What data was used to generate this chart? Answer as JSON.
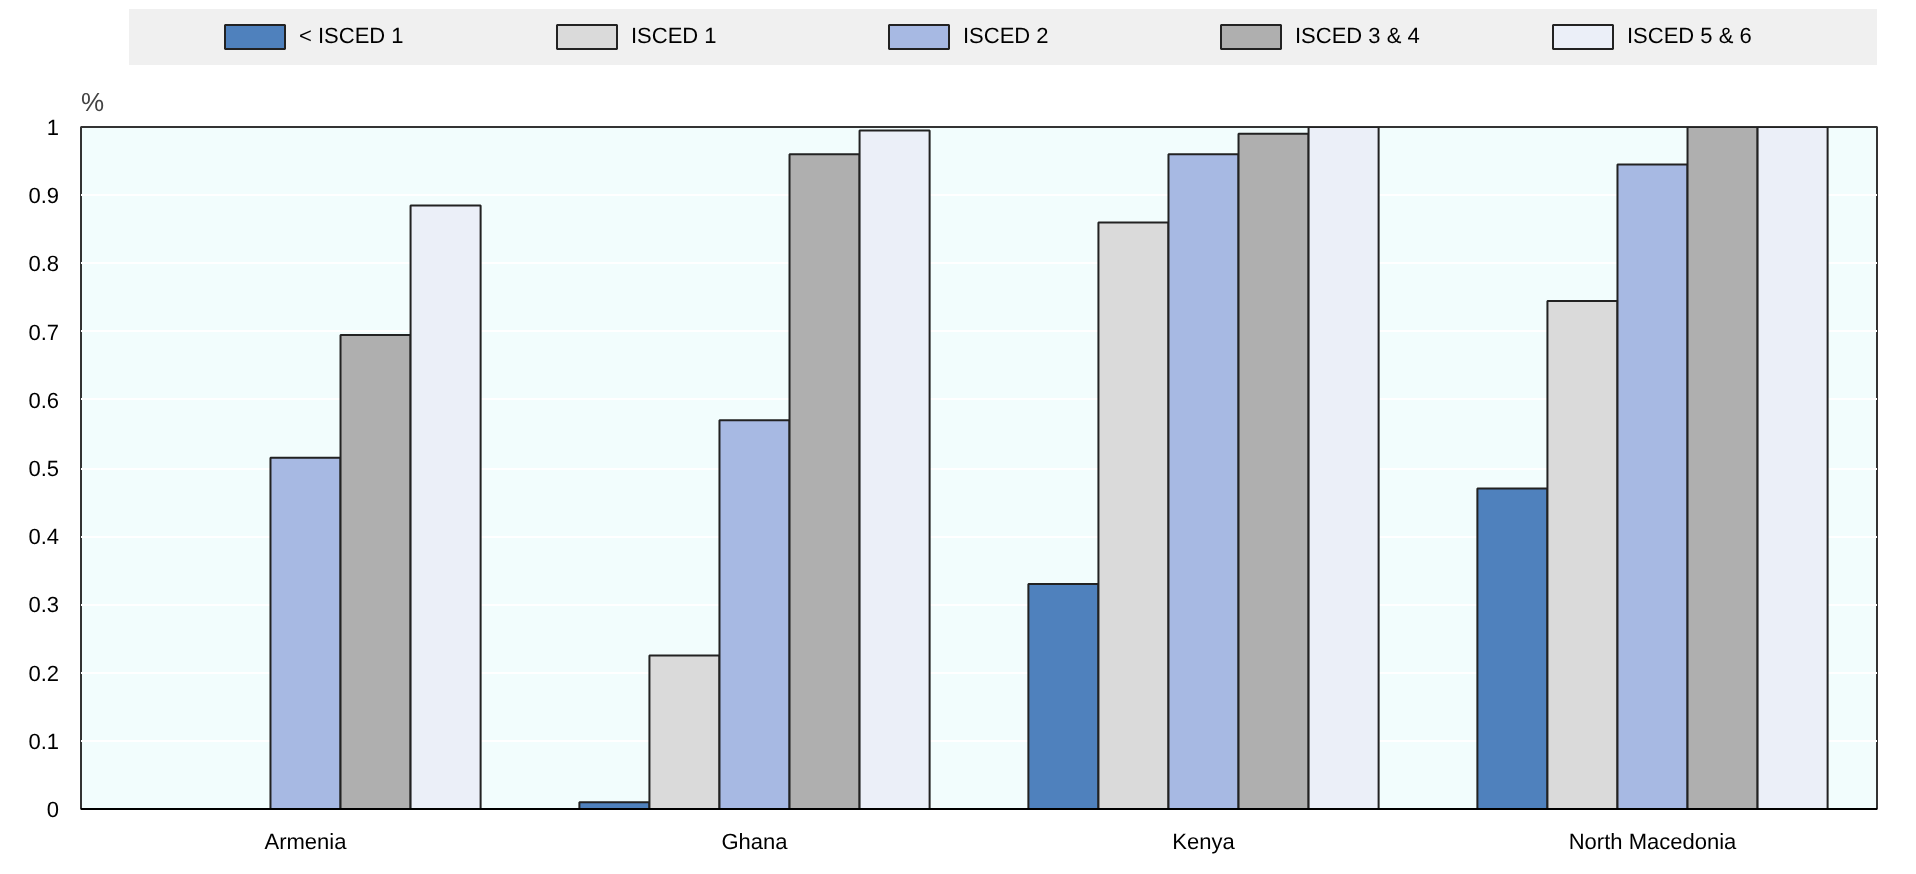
{
  "chart_data": {
    "type": "bar",
    "ylabel": "%",
    "categories": [
      "Armenia",
      "Ghana",
      "Kenya",
      "North Macedonia"
    ],
    "series": [
      {
        "name": "< ISCED 1",
        "color": "#4f81bd",
        "values": [
          null,
          0.01,
          0.33,
          0.47
        ]
      },
      {
        "name": "ISCED 1",
        "color": "#dadada",
        "values": [
          null,
          0.225,
          0.86,
          0.745
        ]
      },
      {
        "name": "ISCED 2",
        "color": "#a7b9e3",
        "values": [
          0.515,
          0.57,
          0.96,
          0.945
        ]
      },
      {
        "name": "ISCED 3 & 4",
        "color": "#afafaf",
        "values": [
          0.695,
          0.96,
          0.99,
          1.0
        ]
      },
      {
        "name": "ISCED 5 & 6",
        "color": "#ebeff8",
        "values": [
          0.885,
          0.995,
          1.0,
          1.0
        ]
      }
    ],
    "ylim": [
      0,
      1
    ],
    "yticks": [
      0,
      0.1,
      0.2,
      0.3,
      0.4,
      0.5,
      0.6,
      0.7,
      0.8,
      0.9,
      1
    ],
    "grid": "y",
    "legend": "top"
  }
}
